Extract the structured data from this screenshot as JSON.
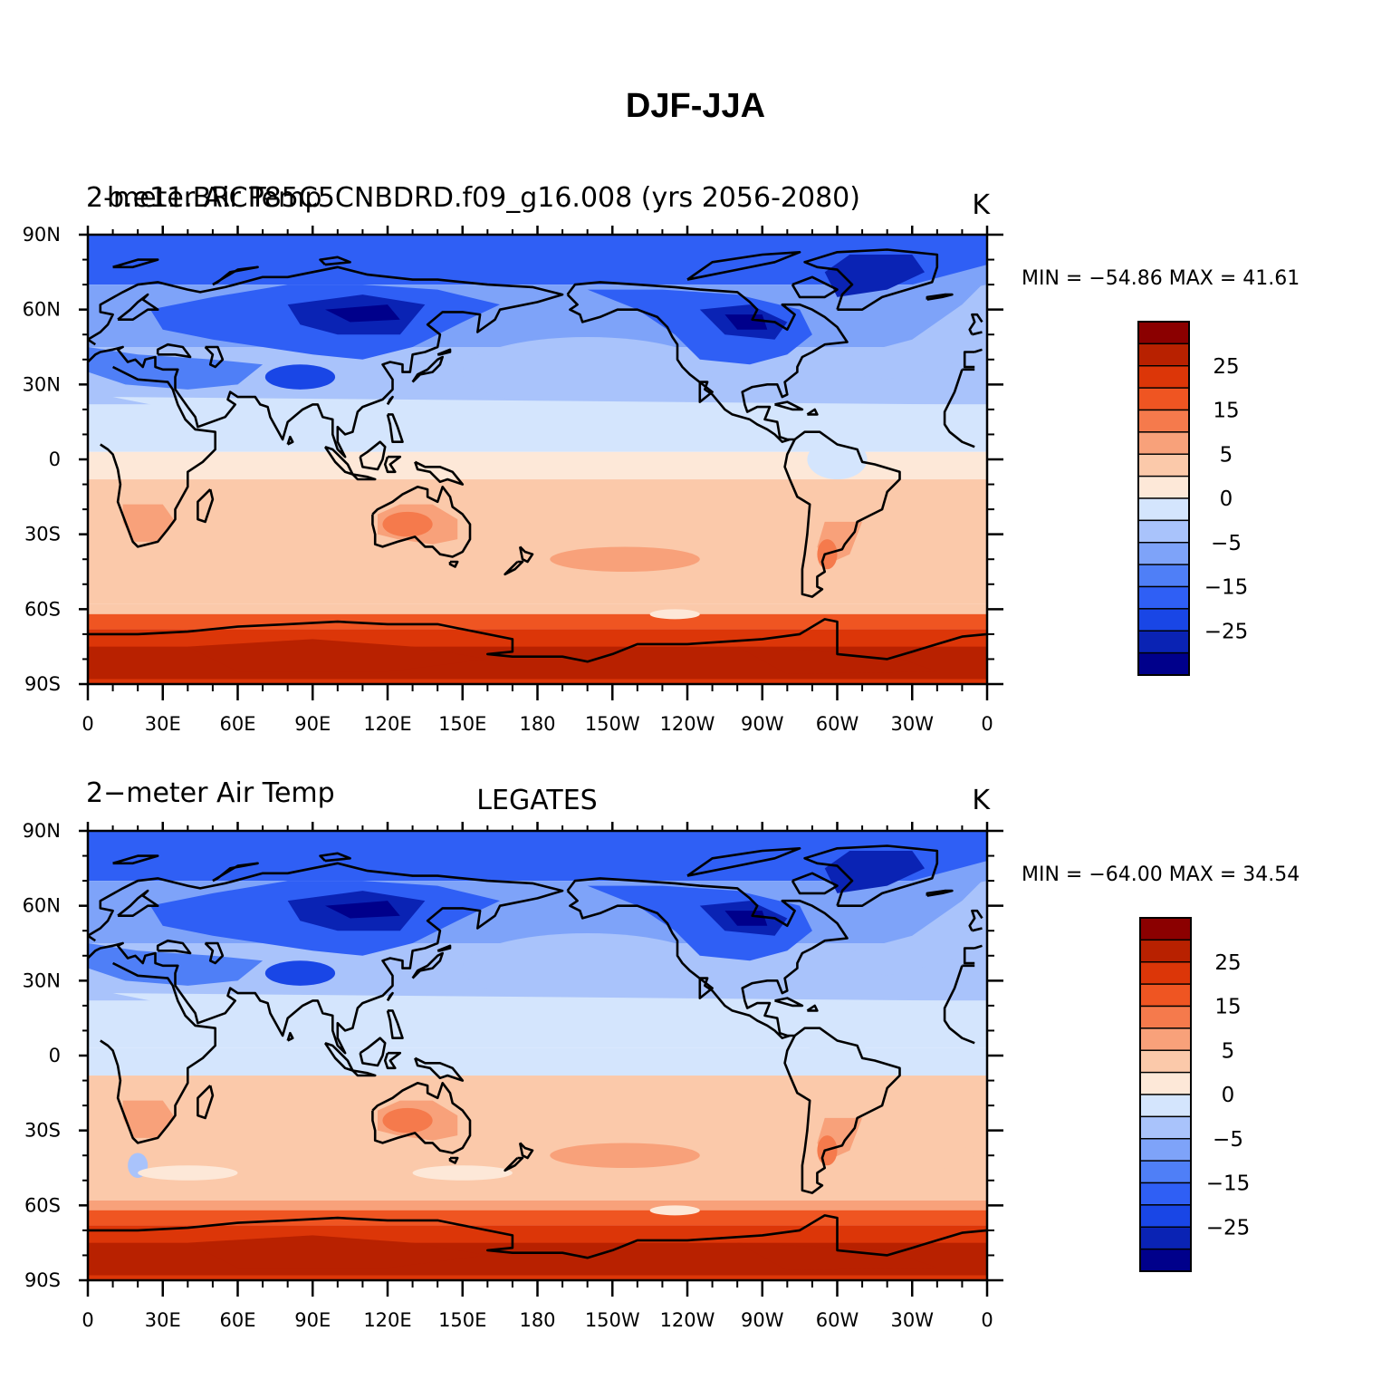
{
  "main_title": "DJF-JJA",
  "palette": [
    "#00008b",
    "#0a23b4",
    "#1946e6",
    "#2f5ff5",
    "#4f7ff7",
    "#7ea3f9",
    "#a9c3fb",
    "#d4e5fd",
    "#fde8d8",
    "#fbc9aa",
    "#f8a17a",
    "#f57a4c",
    "#ef5522",
    "#dc3608",
    "#b82100",
    "#8b0000"
  ],
  "colorbar_labels": [
    "25",
    "15",
    "5",
    "0",
    "−5",
    "−15",
    "−25"
  ],
  "panels": [
    {
      "left_title": "2-meter Air Temp",
      "left_title_overlap": "b.e11.BRCP85C5CNBDRD.f09_g16.008 (yrs 2056-2080)",
      "center_title": "",
      "units": "K",
      "stats": "MIN = −54.86 MAX =   41.61"
    },
    {
      "left_title": "2−meter Air Temp",
      "center_title": "LEGATES",
      "units": "K",
      "stats": "MIN = −64.00 MAX =   34.54"
    }
  ],
  "lat_labels": [
    "90N",
    "60N",
    "30N",
    "0",
    "30S",
    "60S",
    "90S"
  ],
  "lon_labels": [
    "0",
    "30E",
    "60E",
    "90E",
    "120E",
    "150E",
    "180",
    "150W",
    "120W",
    "90W",
    "60W",
    "30W",
    "0"
  ],
  "chart_data": {
    "type": "heatmap",
    "title": "DJF-JJA",
    "variable": "2-meter Air Temp",
    "units": "K",
    "projection": "cylindrical equidistant, centered 180",
    "lat_range": [
      -90,
      90
    ],
    "lon_range": [
      0,
      360
    ],
    "contour_levels": [
      -35,
      -30,
      -25,
      -20,
      -15,
      -10,
      -5,
      0,
      5,
      10,
      15,
      20,
      25,
      30,
      35
    ],
    "panels": [
      {
        "name": "b.e11.BRCP85C5CNBDRD.f09_g16.008 (yrs 2056-2080)",
        "min": -54.86,
        "max": 41.61
      },
      {
        "name": "LEGATES",
        "min": -64.0,
        "max": 34.54
      }
    ]
  }
}
